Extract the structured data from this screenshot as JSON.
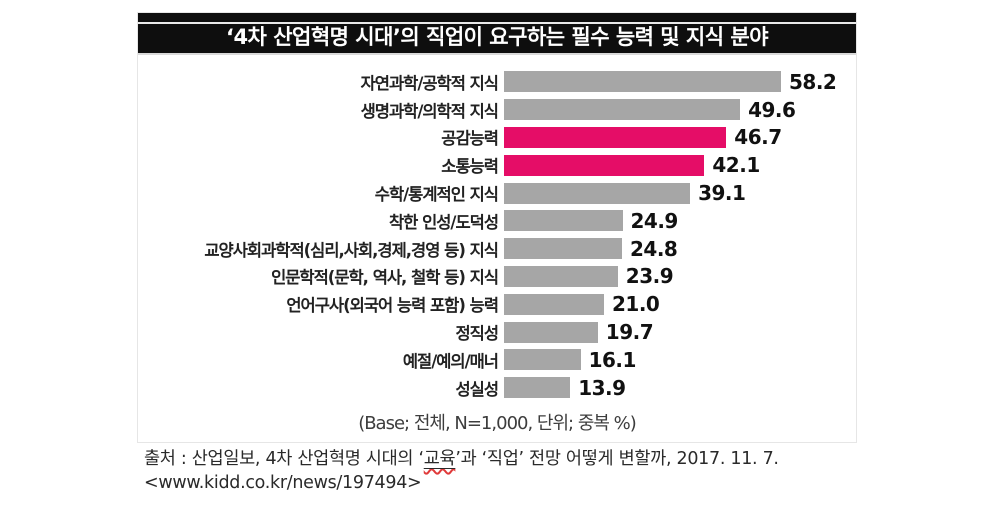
{
  "chart_data": {
    "type": "bar",
    "orientation": "horizontal",
    "title": "‘4차 산업혁명 시대’의 직업이 요구하는 필수 능력 및 지식 분야",
    "categories": [
      "자연과학/공학적 지식",
      "생명과학/의학적 지식",
      "공감능력",
      "소통능력",
      "수학/통계적인 지식",
      "착한 인성/도덕성",
      "교양사회과학적(심리,사회,경제,경영 등) 지식",
      "인문학적(문학, 역사, 철학 등) 지식",
      "언어구사(외국어 능력 포함) 능력",
      "정직성",
      "예절/예의/매너",
      "성실성"
    ],
    "values": [
      58.2,
      49.6,
      46.7,
      42.1,
      39.1,
      24.9,
      24.8,
      23.9,
      21.0,
      19.7,
      16.1,
      13.9
    ],
    "value_labels": [
      "58.2",
      "49.6",
      "46.7",
      "42.1",
      "39.1",
      "24.9",
      "24.8",
      "23.9",
      "21.0",
      "19.7",
      "16.1",
      "13.9"
    ],
    "highlight_indices": [
      2,
      3
    ],
    "bar_color": "#a6a6a6",
    "highlight_color": "#e50d67",
    "xlim": [
      0,
      62
    ],
    "grid": false,
    "legend": "none",
    "base_note": "(Base; 전체, N=1,000, 단위; 중복 %)"
  },
  "source": {
    "line1_before": "출처 : 산업일보, 4차 산업혁명 시대의 ‘",
    "education_word": "교육",
    "line1_after": "’과 ‘직업’ 전망 어떻게 변할까, 2017. 11. 7.",
    "line2": "<www.kidd.co.kr/news/197494>"
  }
}
